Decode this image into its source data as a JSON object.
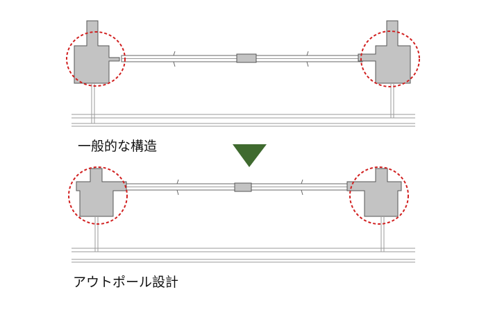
{
  "captions": {
    "typical": "一般的な構造",
    "outpole": "アウトポール設計"
  },
  "colors": {
    "column_fill": "#c3c3c3",
    "outline": "#555555",
    "highlight_circle": "#d11f1f",
    "arrow": "#3f6a2f"
  },
  "icons": {
    "arrow": "down-triangle-arrow-icon"
  }
}
